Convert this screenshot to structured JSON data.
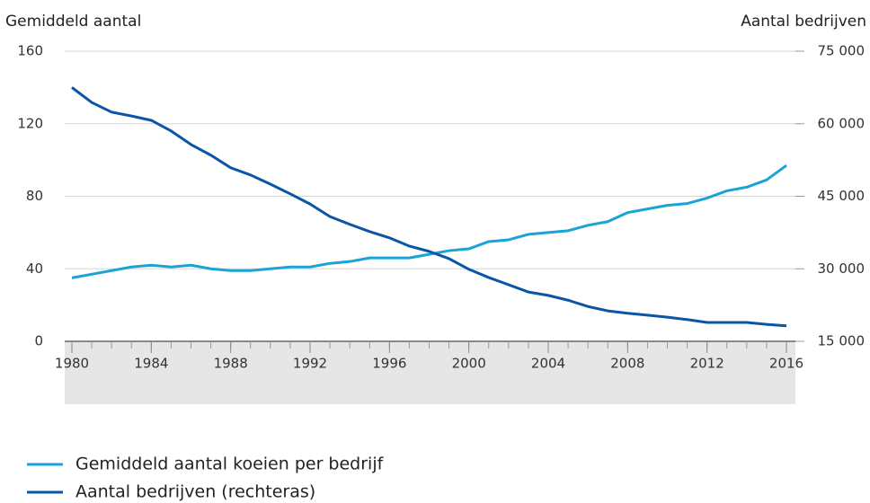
{
  "chart_data": {
    "type": "line",
    "y_label": "Gemiddeld aantal",
    "y2_label": "Aantal bedrijven",
    "x": [
      1980,
      1981,
      1982,
      1983,
      1984,
      1985,
      1986,
      1987,
      1988,
      1989,
      1990,
      1991,
      1992,
      1993,
      1994,
      1995,
      1996,
      1997,
      1998,
      1999,
      2000,
      2001,
      2002,
      2003,
      2004,
      2005,
      2006,
      2007,
      2008,
      2009,
      2010,
      2011,
      2012,
      2013,
      2014,
      2015,
      2016
    ],
    "xlim": [
      1980,
      2016
    ],
    "xticks": [
      1980,
      1984,
      1988,
      1992,
      1996,
      2000,
      2004,
      2008,
      2012,
      2016
    ],
    "ylim": [
      0,
      160
    ],
    "yticks": [
      0,
      40,
      80,
      120,
      160
    ],
    "y2lim": [
      15000,
      75000
    ],
    "y2ticks": [
      {
        "value": 15000,
        "label": "15 000"
      },
      {
        "value": 30000,
        "label": "30 000"
      },
      {
        "value": 45000,
        "label": "45 000"
      },
      {
        "value": 60000,
        "label": "60 000"
      },
      {
        "value": 75000,
        "label": "75 000"
      }
    ],
    "grid": true,
    "series": [
      {
        "name": "Gemiddeld aantal koeien per bedrijf",
        "color": "#1ba3d6",
        "values": [
          35,
          37,
          39,
          41,
          42,
          41,
          42,
          40,
          39,
          39,
          40,
          41,
          41,
          43,
          44,
          46,
          46,
          46,
          48,
          50,
          51,
          55,
          56,
          59,
          60,
          61,
          64,
          66,
          71,
          73,
          75,
          76,
          79,
          83,
          85,
          89,
          97
        ]
      },
      {
        "name": "Aantal bedrijven (rechteras)",
        "color": "#0b55a6",
        "axis": "y2",
        "values": [
          67500,
          64400,
          62400,
          61600,
          60700,
          58500,
          55700,
          53500,
          50900,
          49400,
          47500,
          45500,
          43400,
          40800,
          39200,
          37700,
          36400,
          34700,
          33600,
          32100,
          29900,
          28200,
          26700,
          25200,
          24500,
          23500,
          22200,
          21300,
          20800,
          20400,
          20000,
          19500,
          18900,
          18900,
          18900,
          18500,
          18200
        ]
      }
    ]
  }
}
